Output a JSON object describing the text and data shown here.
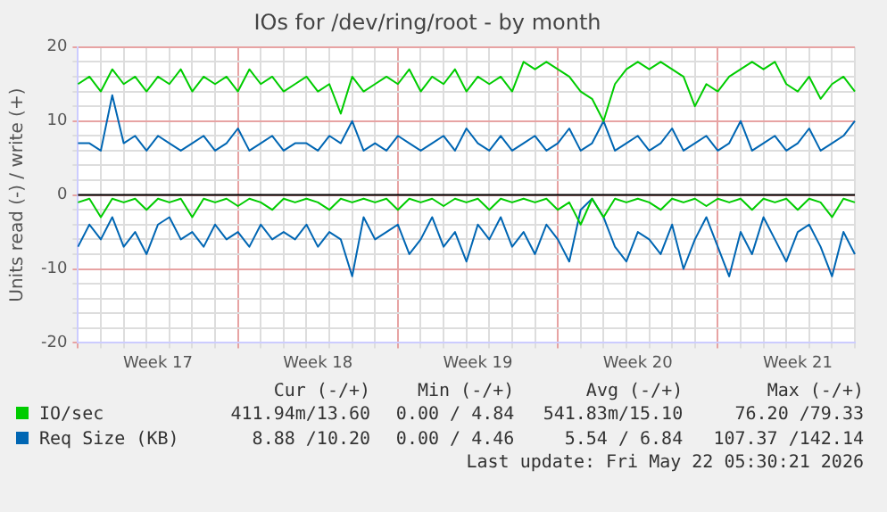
{
  "chart_data": {
    "type": "line",
    "title": "IOs for /dev/ring/root - by month",
    "ylabel": "Units read (-) / write (+)",
    "categories": [
      null,
      null,
      null,
      null,
      null,
      null,
      null,
      "Week 17",
      null,
      null,
      null,
      null,
      null,
      null,
      null,
      null,
      null,
      null,
      null,
      null,
      null,
      "Week 18",
      null,
      null,
      null,
      null,
      null,
      null,
      null,
      null,
      null,
      null,
      null,
      null,
      null,
      "Week 19",
      null,
      null,
      null,
      null,
      null,
      null,
      null,
      null,
      null,
      null,
      null,
      null,
      null,
      "Week 20",
      null,
      null,
      null,
      null,
      null,
      null,
      null,
      null,
      null,
      null,
      null,
      null,
      null,
      "Week 21",
      null,
      null,
      null,
      null,
      null
    ],
    "series": [
      {
        "name": "IO/sec",
        "color": "#00cc00",
        "values": [
          15,
          16,
          14,
          17,
          15,
          16,
          14,
          16,
          15,
          17,
          14,
          16,
          15,
          16,
          14,
          17,
          15,
          16,
          14,
          15,
          16,
          14,
          15,
          11,
          16,
          14,
          15,
          16,
          15,
          17,
          14,
          16,
          15,
          17,
          14,
          16,
          15,
          16,
          14,
          18,
          17,
          18,
          17,
          16,
          14,
          13,
          10,
          15,
          17,
          18,
          17,
          18,
          17,
          16,
          12,
          15,
          14,
          16,
          17,
          18,
          17,
          18,
          15,
          14,
          16,
          13,
          15,
          16,
          14
        ]
      },
      {
        "color": "#00cc00",
        "values": [
          -1,
          -0.5,
          -3,
          -0.5,
          -1,
          -0.5,
          -2,
          -0.5,
          -1,
          -0.5,
          -3,
          -0.5,
          -1,
          -0.5,
          -1.5,
          -0.5,
          -1,
          -2,
          -0.5,
          -1,
          -0.5,
          -1,
          -2,
          -0.5,
          -1,
          -0.5,
          -1,
          -0.5,
          -2,
          -0.5,
          -1,
          -0.5,
          -1.5,
          -0.5,
          -1,
          -0.5,
          -2,
          -0.5,
          -1,
          -0.5,
          -1,
          -0.5,
          -2,
          -1,
          -4,
          -0.5,
          -3,
          -0.5,
          -1,
          -0.5,
          -1,
          -2,
          -0.5,
          -1,
          -0.5,
          -1.5,
          -0.5,
          -1,
          -0.5,
          -2,
          -0.5,
          -1,
          -0.5,
          -2,
          -0.5,
          -1,
          -3,
          -0.5,
          -1
        ]
      },
      {
        "name": "Req Size (KB)",
        "color": "#0066b3",
        "values": [
          7,
          7,
          6,
          13.5,
          7,
          8,
          6,
          8,
          7,
          6,
          7,
          8,
          6,
          7,
          9,
          6,
          7,
          8,
          6,
          7,
          7,
          6,
          8,
          7,
          10,
          6,
          7,
          6,
          8,
          7,
          6,
          7,
          8,
          6,
          9,
          7,
          6,
          8,
          6,
          7,
          8,
          6,
          7,
          9,
          6,
          7,
          10,
          6,
          7,
          8,
          6,
          7,
          9,
          6,
          7,
          8,
          6,
          7,
          10,
          6,
          7,
          8,
          6,
          7,
          9,
          6,
          7,
          8,
          10
        ]
      },
      {
        "color": "#0066b3",
        "values": [
          -7,
          -4,
          -6,
          -3,
          -7,
          -5,
          -8,
          -4,
          -3,
          -6,
          -5,
          -7,
          -4,
          -6,
          -5,
          -7,
          -4,
          -6,
          -5,
          -6,
          -4,
          -7,
          -5,
          -6,
          -11,
          -3,
          -6,
          -5,
          -4,
          -8,
          -6,
          -3,
          -7,
          -5,
          -9,
          -4,
          -6,
          -3,
          -7,
          -5,
          -8,
          -4,
          -6,
          -9,
          -2,
          -0.5,
          -3,
          -7,
          -9,
          -5,
          -6,
          -8,
          -4,
          -10,
          -6,
          -3,
          -7,
          -11,
          -5,
          -8,
          -3,
          -6,
          -9,
          -5,
          -4,
          -7,
          -11,
          -5,
          -8
        ]
      }
    ],
    "ylim": [
      -20,
      20
    ],
    "yticks": [
      -20,
      {
        "value": -18,
        "label": null
      },
      {
        "value": -16,
        "label": null
      },
      {
        "value": -14,
        "label": null
      },
      {
        "value": -12,
        "label": null
      },
      -10,
      {
        "value": -8,
        "label": null
      },
      {
        "value": -6,
        "label": null
      },
      {
        "value": -4,
        "label": null
      },
      {
        "value": -2,
        "label": null
      },
      0,
      {
        "value": 2,
        "label": null
      },
      {
        "value": 4,
        "label": null
      },
      {
        "value": 6,
        "label": null
      },
      {
        "value": 8,
        "label": null
      },
      10,
      {
        "value": 12,
        "label": null
      },
      {
        "value": 14,
        "label": null
      },
      {
        "value": 16,
        "label": null
      },
      {
        "value": 18,
        "label": null
      },
      20
    ],
    "grid": true,
    "marker": "none",
    "line_style": "solid",
    "legend": "bottom",
    "ref_lines": [
      {
        "axis": "y",
        "value": 0,
        "color": "#000000"
      }
    ],
    "annotations": [
      "Cur (-/+)",
      "Min (-/+)",
      "Avg (-/+)",
      "Max (-/+)",
      "411.94m/13.60",
      "0.00 / 4.84",
      "541.83m/15.10",
      "76.20 /79.33",
      "8.88 /10.20",
      "0.00 / 4.46",
      "5.54 / 6.84",
      "107.37 /142.14",
      "Last update: Fri May 22 05:30:21 2026"
    ]
  }
}
